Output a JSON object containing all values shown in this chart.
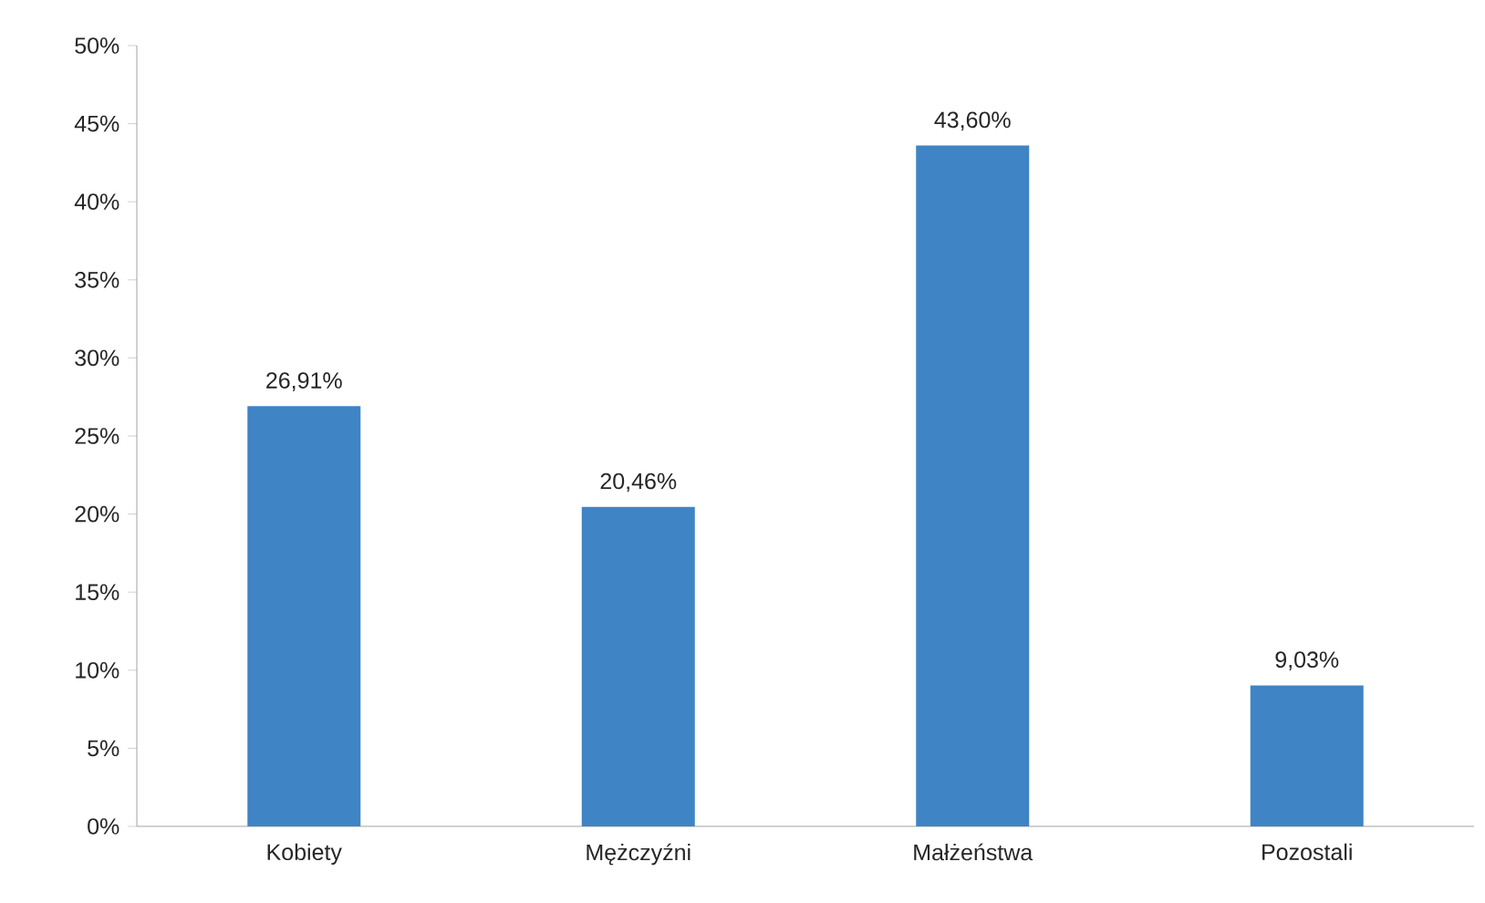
{
  "chart_data": {
    "type": "bar",
    "categories": [
      "Kobiety",
      "Mężczyźni",
      "Małżeństwa",
      "Pozostali"
    ],
    "values": [
      26.91,
      20.46,
      43.6,
      9.03
    ],
    "value_labels": [
      "26,91%",
      "20,46%",
      "43,60%",
      "9,03%"
    ],
    "color": "#3f84c4",
    "ylim": [
      0,
      50
    ],
    "yticks": [
      {
        "value": 0,
        "label": "0%"
      },
      {
        "value": 5,
        "label": "5%"
      },
      {
        "value": 10,
        "label": "10%"
      },
      {
        "value": 15,
        "label": "15%"
      },
      {
        "value": 20,
        "label": "20%"
      },
      {
        "value": 25,
        "label": "25%"
      },
      {
        "value": 30,
        "label": "30%"
      },
      {
        "value": 35,
        "label": "35%"
      },
      {
        "value": 40,
        "label": "40%"
      },
      {
        "value": 45,
        "label": "45%"
      },
      {
        "value": 50,
        "label": "50%"
      }
    ],
    "grid": false
  }
}
